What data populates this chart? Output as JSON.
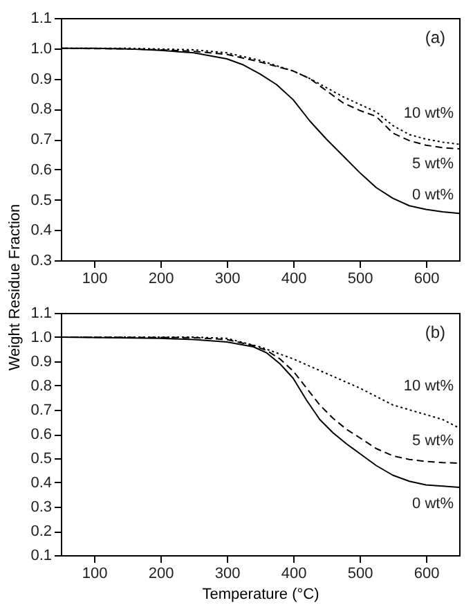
{
  "chart_data": [
    {
      "type": "line",
      "ylabel": "Weight Residue Fraction",
      "annotations": [
        "(a)"
      ],
      "xlim": [
        50,
        650
      ],
      "ylim": [
        0.3,
        1.1
      ],
      "xticks": [
        100,
        200,
        300,
        400,
        500,
        600
      ],
      "yticks": [
        0.3,
        0.4,
        0.5,
        0.6,
        0.7,
        0.8,
        0.9,
        {
          "value": 1,
          "label": "1.0"
        },
        1.1
      ],
      "grid": false,
      "legend": false,
      "series": [
        {
          "name": "0 wt%",
          "color": "#000000",
          "line_style": "solid",
          "x": [
            50,
            100,
            150,
            200,
            250,
            300,
            325,
            350,
            375,
            400,
            425,
            450,
            475,
            500,
            525,
            550,
            575,
            600,
            625,
            650
          ],
          "values": [
            1.0,
            1.0,
            0.998,
            0.993,
            0.985,
            0.965,
            0.945,
            0.915,
            0.88,
            0.83,
            0.76,
            0.7,
            0.645,
            0.59,
            0.54,
            0.505,
            0.48,
            0.468,
            0.46,
            0.455
          ]
        },
        {
          "name": "5 wt%",
          "color": "#000000",
          "line_style": "dashed",
          "x": [
            50,
            150,
            200,
            250,
            300,
            350,
            400,
            425,
            450,
            475,
            500,
            525,
            550,
            575,
            600,
            625,
            650
          ],
          "values": [
            1.0,
            0.998,
            0.995,
            0.99,
            0.98,
            0.955,
            0.925,
            0.9,
            0.86,
            0.82,
            0.795,
            0.775,
            0.72,
            0.695,
            0.68,
            0.672,
            0.668
          ]
        },
        {
          "name": "10 wt%",
          "color": "#000000",
          "line_style": "dotted",
          "x": [
            50,
            150,
            250,
            300,
            350,
            400,
            425,
            450,
            475,
            500,
            525,
            550,
            575,
            600,
            625,
            650
          ],
          "values": [
            1.0,
            1.0,
            0.995,
            0.985,
            0.96,
            0.925,
            0.9,
            0.87,
            0.84,
            0.815,
            0.79,
            0.745,
            0.715,
            0.7,
            0.69,
            0.683
          ]
        }
      ]
    },
    {
      "type": "line",
      "xlabel": "Temperature (°C)",
      "annotations": [
        "(b)"
      ],
      "xlim": [
        50,
        650
      ],
      "ylim": [
        0.1,
        1.1
      ],
      "xticks": [
        100,
        200,
        300,
        400,
        500,
        600
      ],
      "yticks": [
        0.1,
        0.2,
        0.3,
        0.4,
        0.5,
        0.6,
        0.7,
        0.8,
        0.9,
        {
          "value": 1,
          "label": "1.0"
        },
        1.1
      ],
      "grid": false,
      "legend": false,
      "series": [
        {
          "name": "0 wt%",
          "color": "#000000",
          "line_style": "solid",
          "x": [
            50,
            200,
            250,
            300,
            340,
            360,
            380,
            400,
            420,
            440,
            460,
            480,
            500,
            525,
            550,
            575,
            600,
            625,
            650
          ],
          "values": [
            1.0,
            0.995,
            0.99,
            0.98,
            0.96,
            0.935,
            0.89,
            0.83,
            0.74,
            0.66,
            0.605,
            0.56,
            0.52,
            0.47,
            0.43,
            0.405,
            0.39,
            0.385,
            0.38
          ]
        },
        {
          "name": "5 wt%",
          "color": "#000000",
          "line_style": "dashed",
          "x": [
            50,
            250,
            300,
            340,
            360,
            380,
            400,
            420,
            440,
            460,
            480,
            500,
            525,
            550,
            575,
            600,
            625,
            650
          ],
          "values": [
            1.0,
            0.998,
            0.99,
            0.965,
            0.945,
            0.91,
            0.86,
            0.79,
            0.72,
            0.665,
            0.62,
            0.585,
            0.54,
            0.51,
            0.495,
            0.487,
            0.482,
            0.48
          ]
        },
        {
          "name": "10 wt%",
          "color": "#000000",
          "line_style": "dotted",
          "x": [
            50,
            250,
            300,
            350,
            400,
            450,
            475,
            500,
            525,
            550,
            575,
            600,
            625,
            650
          ],
          "values": [
            1.0,
            1.0,
            0.995,
            0.96,
            0.91,
            0.85,
            0.82,
            0.79,
            0.755,
            0.72,
            0.7,
            0.68,
            0.66,
            0.625
          ]
        }
      ]
    }
  ]
}
